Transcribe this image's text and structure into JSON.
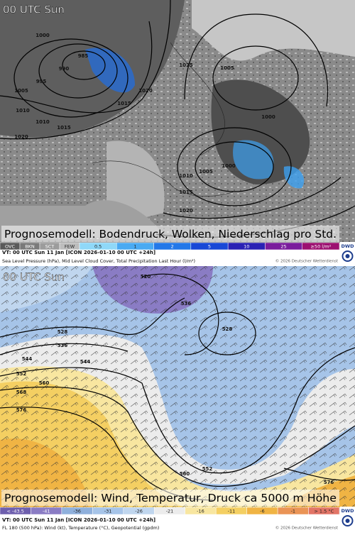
{
  "logo": "DWD",
  "panels": [
    {
      "time_label": "00 UTC Sun",
      "caption": "Prognosemodell: Bodendruck, Wolken, Niederschlag pro Std.",
      "legend": [
        {
          "label": "OVC",
          "color": "#5a5a5a"
        },
        {
          "label": "BKN",
          "color": "#7a7a7a"
        },
        {
          "label": "SCT",
          "color": "#9c9c9c"
        },
        {
          "label": "FEW",
          "color": "#bdbdbd"
        },
        {
          "label": "0.5",
          "color": "#8fd8f8"
        },
        {
          "label": "1",
          "color": "#4aaaf2"
        },
        {
          "label": "2",
          "color": "#2378e8"
        },
        {
          "label": "5",
          "color": "#1848d6"
        },
        {
          "label": "10",
          "color": "#2a22b4"
        },
        {
          "label": "25",
          "color": "#7a1c9c"
        },
        {
          "label": "≥50 l/m²",
          "color": "#9c1070"
        }
      ],
      "footer_line1": "VT: 00 UTC Sun   11 Jan [ICON 2026-01-10 00 UTC +24h]",
      "footer_line2": "Sea Level Pressure (hPa), Mid Level Cloud Cover, Total Precipitation Last Hour (l/m²)",
      "copyright": "© 2026 Deutscher Wetterdienst",
      "contour_labels": [
        "1000",
        "985",
        "990",
        "995",
        "1005",
        "1010",
        "1010",
        "1015",
        "1020",
        "1015",
        "1020",
        "1025",
        "1005",
        "1000",
        "1000",
        "1005",
        "1010",
        "1015",
        "1020"
      ]
    },
    {
      "time_label": "00 UTC Sun",
      "caption": "Prognosemodell: Wind, Temperatur, Druck ca 5000 m Höhe",
      "legend": [
        {
          "label": "< -43.5",
          "color": "#6e5fae"
        },
        {
          "label": "-41",
          "color": "#8a7cc4"
        },
        {
          "label": "-36",
          "color": "#8fb0dc"
        },
        {
          "label": "-31",
          "color": "#a6c4e8"
        },
        {
          "label": "-26",
          "color": "#c0d6ee"
        },
        {
          "label": "-21",
          "color": "#ececec"
        },
        {
          "label": "-16",
          "color": "#f8e6a0"
        },
        {
          "label": "-11",
          "color": "#f4cf62"
        },
        {
          "label": "-6",
          "color": "#f0b444"
        },
        {
          "label": "-1",
          "color": "#ea9456"
        },
        {
          "label": "> 1.5 °C",
          "color": "#e27466"
        }
      ],
      "footer_line1": "VT: 00 UTC Sun   11 Jan [ICON 2026-01-10 00 UTC +24h]",
      "footer_line2": "FL 180 (500 hPa): Wind (kt), Temperature (°C), Geopotential (gpdm)",
      "copyright": "© 2026 Deutscher Wetterdienst",
      "contour_labels": [
        "520",
        "528",
        "536",
        "544",
        "552",
        "560",
        "568",
        "576",
        "536",
        "528",
        "552",
        "560",
        "576",
        "544"
      ]
    }
  ]
}
